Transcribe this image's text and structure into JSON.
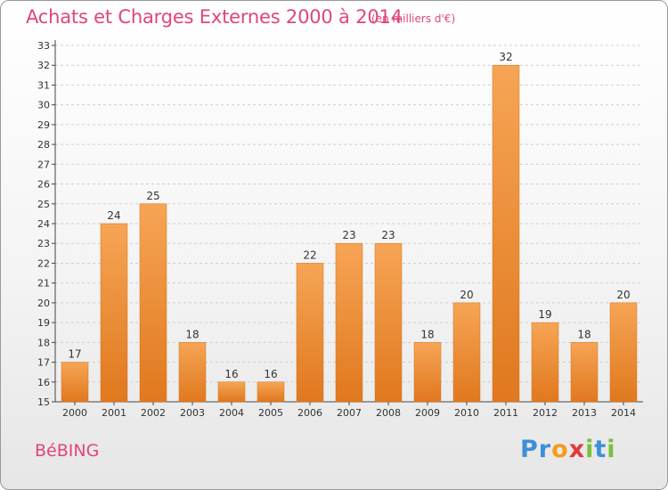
{
  "title": "Achats et Charges Externes 2000 à 2014",
  "unit": "(en milliers d'€)",
  "commune": "BéBING",
  "logo": {
    "text": "Proxiti",
    "letters": [
      {
        "ch": "P",
        "color": "#3d8fd8"
      },
      {
        "ch": "r",
        "color": "#3d8fd8"
      },
      {
        "ch": "o",
        "color": "#f39b1c"
      },
      {
        "ch": "x",
        "color": "#e23a3a"
      },
      {
        "ch": "i",
        "color": "#7cbf3a"
      },
      {
        "ch": "t",
        "color": "#3d8fd8"
      },
      {
        "ch": "i",
        "color": "#7cbf3a"
      }
    ]
  },
  "colors": {
    "title": "#e0457b",
    "bar_top": "#f6a555",
    "bar_bottom": "#e0781e",
    "grid": "#cfcfcf"
  },
  "chart_data": {
    "type": "bar",
    "categories": [
      "2000",
      "2001",
      "2002",
      "2003",
      "2004",
      "2005",
      "2006",
      "2007",
      "2008",
      "2009",
      "2010",
      "2011",
      "2012",
      "2013",
      "2014"
    ],
    "values": [
      17,
      24,
      25,
      18,
      16,
      16,
      22,
      23,
      23,
      18,
      20,
      32,
      19,
      18,
      20
    ],
    "ylim": [
      15,
      33
    ],
    "yticks": [
      15,
      16,
      17,
      18,
      19,
      20,
      21,
      22,
      23,
      24,
      25,
      26,
      27,
      28,
      29,
      30,
      31,
      32,
      33
    ],
    "grid": true,
    "data_labels": true
  }
}
